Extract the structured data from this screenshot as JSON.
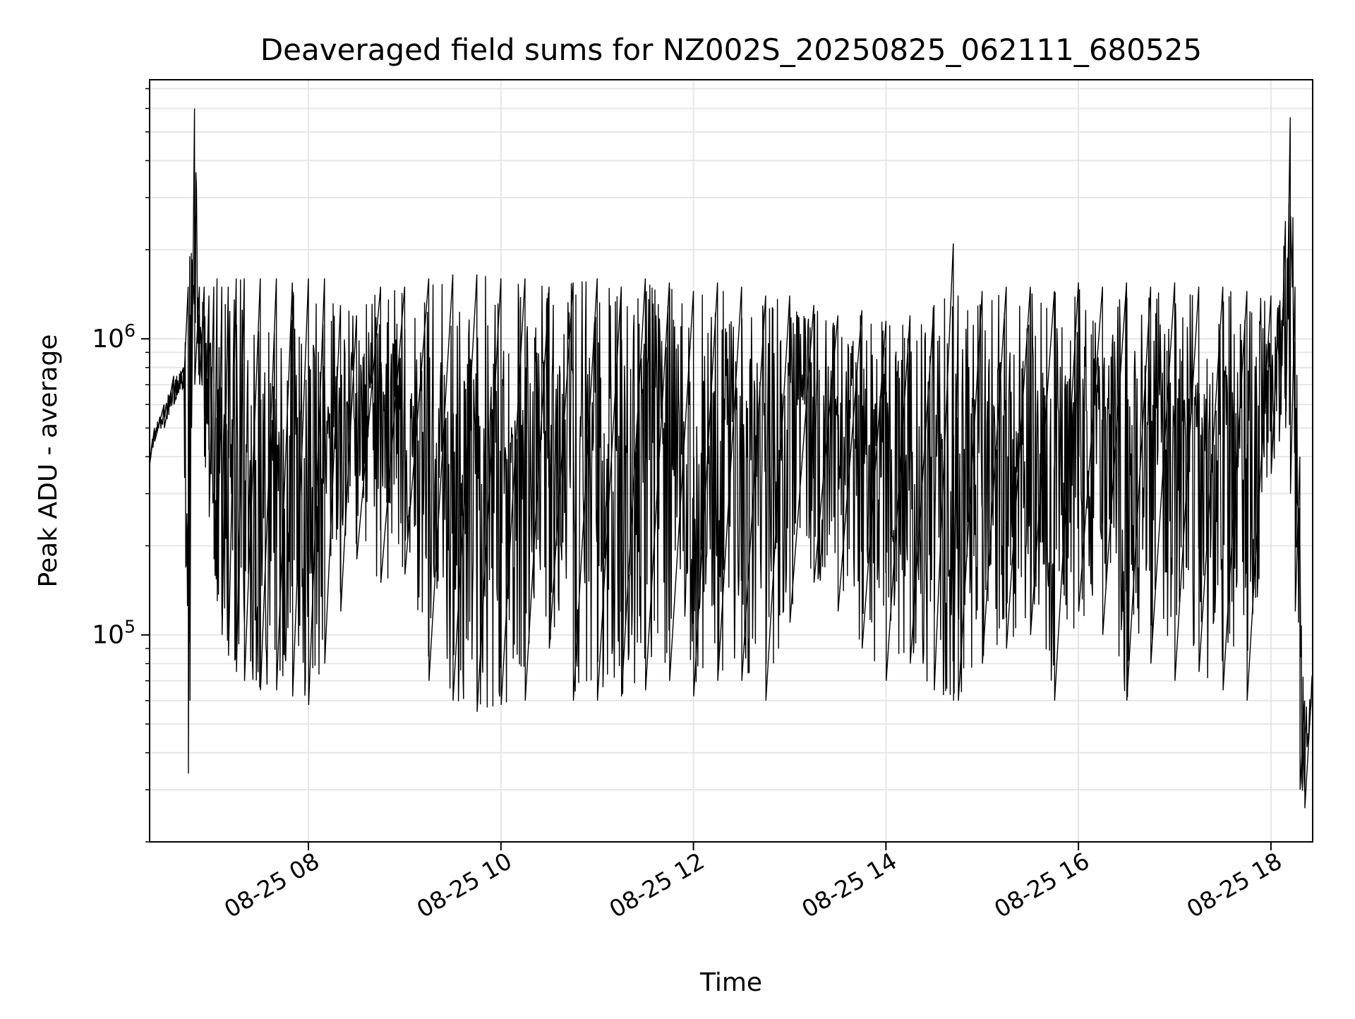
{
  "chart_data": {
    "type": "line",
    "title": "Deaveraged field sums for NZ002S_20250825_062111_680525",
    "xlabel": "Time",
    "ylabel": "Peak ADU - average",
    "xlim": [
      "2025-08-25T06:21",
      "2025-08-25T18:26"
    ],
    "x_ticks": [
      {
        "value": "2025-08-25T08:00",
        "label": "08-25 08"
      },
      {
        "value": "2025-08-25T10:00",
        "label": "08-25 10"
      },
      {
        "value": "2025-08-25T12:00",
        "label": "08-25 12"
      },
      {
        "value": "2025-08-25T14:00",
        "label": "08-25 14"
      },
      {
        "value": "2025-08-25T16:00",
        "label": "08-25 16"
      },
      {
        "value": "2025-08-25T18:00",
        "label": "08-25 18"
      }
    ],
    "y_scale": "log",
    "ylim": [
      20000,
      7500000
    ],
    "y_ticks": [
      {
        "value": 100000,
        "base": "10",
        "exp": "5"
      },
      {
        "value": 1000000,
        "base": "10",
        "exp": "6"
      }
    ],
    "grid": true,
    "line_color": "#000000",
    "grid_color": "#e6e6e6",
    "series": [
      {
        "x": [
          "2025-08-25T06:21",
          "2025-08-25T06:24",
          "2025-08-25T06:30",
          "2025-08-25T06:36",
          "2025-08-25T06:42",
          "2025-08-25T06:45",
          "2025-08-25T06:46",
          "2025-08-25T06:47",
          "2025-08-25T06:49",
          "2025-08-25T06:52",
          "2025-08-25T06:55",
          "2025-08-25T06:58",
          "2025-08-25T07:01",
          "2025-08-25T07:03",
          "2025-08-25T07:06",
          "2025-08-25T07:10",
          "2025-08-25T07:15",
          "2025-08-25T07:20",
          "2025-08-25T07:30",
          "2025-08-25T07:40",
          "2025-08-25T07:50",
          "2025-08-25T08:00",
          "2025-08-25T08:10",
          "2025-08-25T08:20",
          "2025-08-25T08:30",
          "2025-08-25T08:45",
          "2025-08-25T09:00",
          "2025-08-25T09:15",
          "2025-08-25T09:30",
          "2025-08-25T09:45",
          "2025-08-25T10:00",
          "2025-08-25T10:15",
          "2025-08-25T10:30",
          "2025-08-25T10:45",
          "2025-08-25T11:00",
          "2025-08-25T11:15",
          "2025-08-25T11:30",
          "2025-08-25T11:45",
          "2025-08-25T12:00",
          "2025-08-25T12:15",
          "2025-08-25T12:30",
          "2025-08-25T12:45",
          "2025-08-25T13:00",
          "2025-08-25T13:15",
          "2025-08-25T13:30",
          "2025-08-25T13:45",
          "2025-08-25T14:00",
          "2025-08-25T14:15",
          "2025-08-25T14:30",
          "2025-08-25T14:42",
          "2025-08-25T14:45",
          "2025-08-25T15:00",
          "2025-08-25T15:15",
          "2025-08-25T15:30",
          "2025-08-25T15:45",
          "2025-08-25T16:00",
          "2025-08-25T16:15",
          "2025-08-25T16:30",
          "2025-08-25T16:45",
          "2025-08-25T17:00",
          "2025-08-25T17:15",
          "2025-08-25T17:30",
          "2025-08-25T17:45",
          "2025-08-25T18:00",
          "2025-08-25T18:05",
          "2025-08-25T18:09",
          "2025-08-25T18:12",
          "2025-08-25T18:15",
          "2025-08-25T18:18",
          "2025-08-25T18:21",
          "2025-08-25T18:26"
        ],
        "low": [
          380000,
          450000,
          500000,
          600000,
          680000,
          34000,
          60000,
          500000,
          700000,
          700000,
          400000,
          250000,
          180000,
          130000,
          100000,
          85000,
          75000,
          70000,
          65000,
          65000,
          62000,
          58000,
          80000,
          120000,
          180000,
          150000,
          160000,
          70000,
          60000,
          55000,
          58000,
          60000,
          90000,
          60000,
          60000,
          62000,
          65000,
          70000,
          62000,
          70000,
          70000,
          60000,
          110000,
          150000,
          120000,
          90000,
          70000,
          80000,
          65000,
          60000,
          60000,
          80000,
          90000,
          100000,
          60000,
          120000,
          100000,
          60000,
          80000,
          70000,
          75000,
          65000,
          60000,
          350000,
          450000,
          500000,
          300000,
          120000,
          30000,
          26000,
          65000
        ],
        "high": [
          420000,
          500000,
          600000,
          750000,
          800000,
          1500000,
          1900000,
          1950000,
          6000000,
          1500000,
          1500000,
          1400000,
          1500000,
          1600000,
          1500000,
          1500000,
          1600000,
          1600000,
          1600000,
          1600000,
          1550000,
          1600000,
          1600000,
          1300000,
          1200000,
          1500000,
          1500000,
          1600000,
          1650000,
          1650000,
          1600000,
          1600000,
          1500000,
          1550000,
          1600000,
          1500000,
          1600000,
          1550000,
          1450000,
          1550000,
          1500000,
          1400000,
          1400000,
          1300000,
          1200000,
          1250000,
          1150000,
          1200000,
          1300000,
          2100000,
          1400000,
          1450000,
          1500000,
          1500000,
          1450000,
          1550000,
          1500000,
          1550000,
          1500000,
          1550000,
          1500000,
          1500000,
          1450000,
          1400000,
          1300000,
          2500000,
          5600000,
          1500000,
          400000,
          60000,
          75000
        ]
      }
    ]
  }
}
